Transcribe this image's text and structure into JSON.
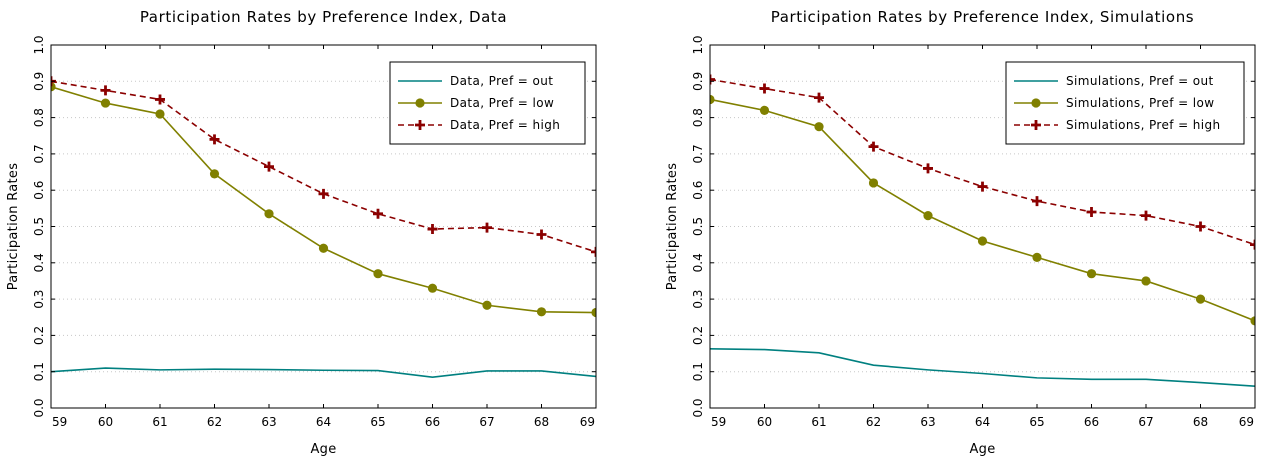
{
  "chart_data": [
    {
      "type": "line",
      "title": "Participation Rates by Preference Index, Data",
      "xlabel": "Age",
      "ylabel": "Participation Rates",
      "x": [
        59,
        60,
        61,
        62,
        63,
        64,
        65,
        66,
        67,
        68,
        69
      ],
      "xlim": [
        59,
        69
      ],
      "ylim": [
        0.0,
        1.0
      ],
      "xticks": [
        "59",
        "60",
        "61",
        "62",
        "63",
        "64",
        "65",
        "66",
        "67",
        "68",
        "69"
      ],
      "yticks": [
        "0.0",
        "0.1",
        "0.2",
        "0.3",
        "0.4",
        "0.5",
        "0.6",
        "0.7",
        "0.8",
        "0.9",
        "1.0"
      ],
      "grid": "horizontal dotted",
      "legend_position": "top-right",
      "series": [
        {
          "name": "Data, Pref = out",
          "color": "#008080",
          "style": "solid",
          "marker": "none",
          "values": [
            0.1,
            0.11,
            0.105,
            0.107,
            0.106,
            0.104,
            0.103,
            0.085,
            0.102,
            0.102,
            0.087
          ]
        },
        {
          "name": "Data, Pref = low",
          "color": "#808000",
          "style": "solid",
          "marker": "circle",
          "values": [
            0.885,
            0.84,
            0.81,
            0.645,
            0.535,
            0.44,
            0.37,
            0.33,
            0.283,
            0.265,
            0.263
          ]
        },
        {
          "name": "Data, Pref = high",
          "color": "#8b0000",
          "style": "dashed",
          "marker": "plus",
          "values": [
            0.9,
            0.875,
            0.85,
            0.74,
            0.665,
            0.59,
            0.535,
            0.493,
            0.497,
            0.478,
            0.43
          ]
        }
      ]
    },
    {
      "type": "line",
      "title": "Participation Rates by Preference Index, Simulations",
      "xlabel": "Age",
      "ylabel": "Participation Rates",
      "x": [
        59,
        60,
        61,
        62,
        63,
        64,
        65,
        66,
        67,
        68,
        69
      ],
      "xlim": [
        59,
        69
      ],
      "ylim": [
        0.0,
        1.0
      ],
      "xticks": [
        "59",
        "60",
        "61",
        "62",
        "63",
        "64",
        "65",
        "66",
        "67",
        "68",
        "69"
      ],
      "yticks": [
        "0.0",
        "0.1",
        "0.2",
        "0.3",
        "0.4",
        "0.5",
        "0.6",
        "0.7",
        "0.8",
        "0.9",
        "1.0"
      ],
      "grid": "horizontal dotted",
      "legend_position": "top-right",
      "series": [
        {
          "name": "Simulations, Pref = out",
          "color": "#008080",
          "style": "solid",
          "marker": "none",
          "values": [
            0.163,
            0.161,
            0.152,
            0.118,
            0.105,
            0.095,
            0.083,
            0.079,
            0.079,
            0.07,
            0.06
          ]
        },
        {
          "name": "Simulations, Pref = low",
          "color": "#808000",
          "style": "solid",
          "marker": "circle",
          "values": [
            0.85,
            0.82,
            0.775,
            0.62,
            0.53,
            0.46,
            0.415,
            0.37,
            0.35,
            0.3,
            0.24
          ]
        },
        {
          "name": "Simulations, Pref = high",
          "color": "#8b0000",
          "style": "dashed",
          "marker": "plus",
          "values": [
            0.905,
            0.88,
            0.855,
            0.72,
            0.66,
            0.61,
            0.57,
            0.54,
            0.53,
            0.5,
            0.45
          ]
        }
      ]
    }
  ]
}
